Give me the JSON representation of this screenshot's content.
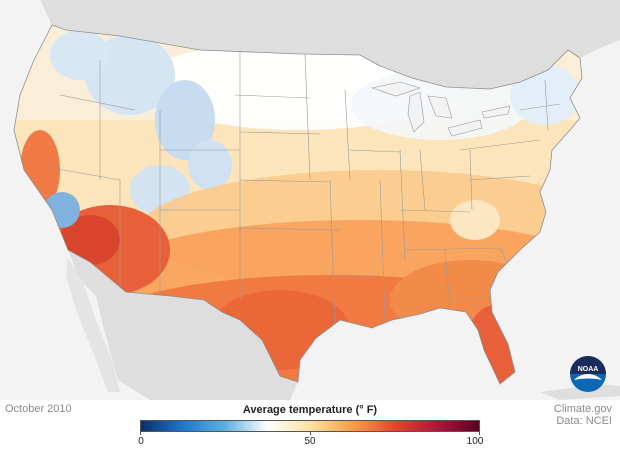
{
  "map": {
    "date": "October 2010",
    "legend_title": "Average temperature (° F)",
    "legend_ticks": [
      "0",
      "50",
      "100"
    ],
    "legend_stops": [
      "#0c2d6b",
      "#1e78c8",
      "#5fb0e0",
      "#ffffff",
      "#fde1a3",
      "#f9a04c",
      "#e2472c",
      "#b0163a",
      "#5a0020"
    ],
    "credit_site": "Climate.gov",
    "credit_data": "Data: NCEI",
    "logo_text": "NOAA",
    "colors": {
      "ocean": "#f3f3f3",
      "neighbor_land": "#dedede",
      "border": "#9a9a9a",
      "hot": "#e0502d",
      "warm": "#f8a560",
      "mild": "#fde2b0",
      "cool": "#ffffff",
      "cold": "#c6ddf0",
      "noaa_blue": "#0a68b5",
      "noaa_navy": "#1b2c5c"
    }
  }
}
